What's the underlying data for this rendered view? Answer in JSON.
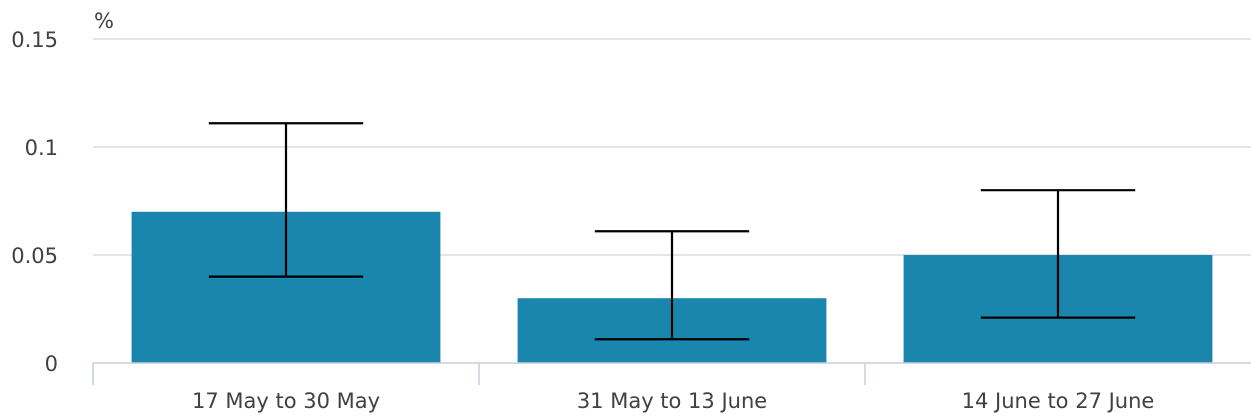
{
  "chart_data": {
    "type": "bar",
    "unit_label": "%",
    "categories": [
      "17 May to 30 May",
      "31 May to 13 June",
      "14 June to 27 June"
    ],
    "values": [
      0.07,
      0.03,
      0.05
    ],
    "error_bars": [
      {
        "lower": 0.04,
        "upper": 0.111
      },
      {
        "lower": 0.011,
        "upper": 0.061
      },
      {
        "lower": 0.021,
        "upper": 0.08
      }
    ],
    "ylim": [
      0,
      0.15
    ],
    "y_ticks": [
      0,
      0.05,
      0.1,
      0.15
    ],
    "y_tick_labels": [
      "0",
      "0.05",
      "0.1",
      "0.15"
    ],
    "grid": true,
    "colors": {
      "bar": "#1a85ad",
      "error_bar": "#000000",
      "grid": "#d9dde3"
    }
  }
}
